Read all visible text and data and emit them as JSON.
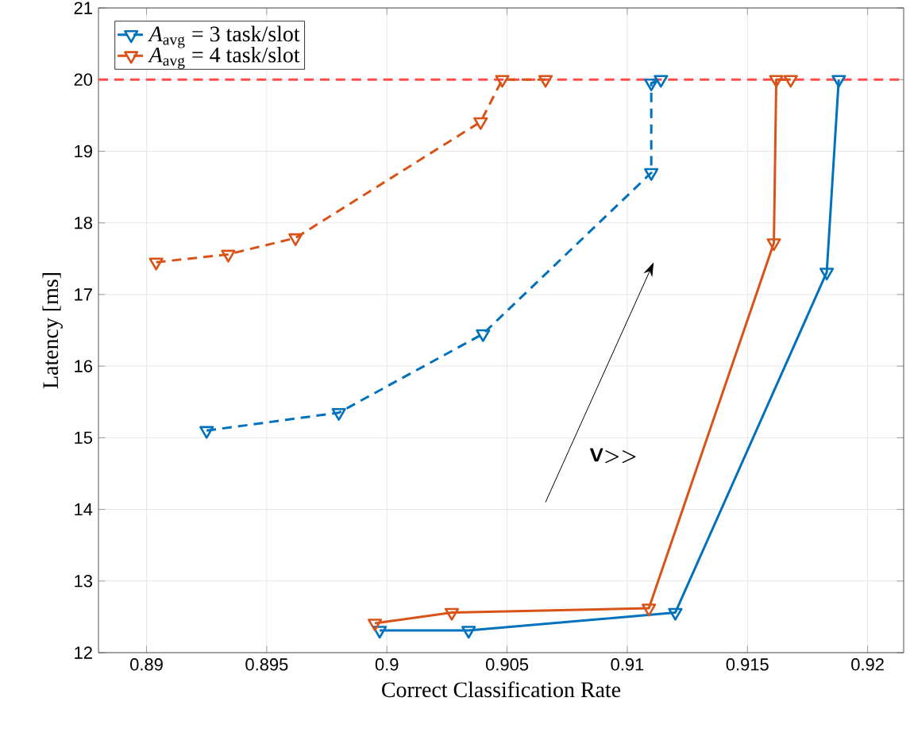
{
  "chart_data": {
    "type": "line",
    "xlabel": "Correct Classification Rate",
    "ylabel": "Latency [ms]",
    "xlim": [
      0.888,
      0.9215
    ],
    "xticks": [
      0.89,
      0.895,
      0.9,
      0.905,
      0.91,
      0.915,
      0.92
    ],
    "ylim": [
      12,
      21
    ],
    "yticks": [
      12,
      13,
      14,
      15,
      16,
      17,
      18,
      19,
      20,
      21
    ],
    "grid": true,
    "legend": "top left",
    "marker": "triangle",
    "annotations": [
      "V>>"
    ],
    "ref_lines": [
      {
        "axis": "y",
        "value": 20,
        "color": "#ff4d4d",
        "line_style": "dashed"
      }
    ],
    "series": [
      {
        "name": "*A*$_{avg}$ = 3 task/slot",
        "color": "#0072bd",
        "line_style": "dashed",
        "x": [
          0.8925,
          0.898,
          0.904,
          0.911,
          0.911,
          0.9114
        ],
        "values": [
          15.1,
          15.35,
          16.45,
          18.7,
          19.95,
          20
        ]
      },
      {
        "name": "*A*$_{avg}$ = 4 task/slot",
        "color": "#d95319",
        "line_style": "dashed",
        "x": [
          0.8904,
          0.8934,
          0.8962,
          0.9039,
          0.9048,
          0.9066
        ],
        "values": [
          17.45,
          17.56,
          17.79,
          19.41,
          20,
          20
        ]
      },
      {
        "color": "#0072bd",
        "line_style": "solid",
        "x": [
          0.8997,
          0.9034,
          0.912,
          0.9183,
          0.9188
        ],
        "values": [
          12.31,
          12.31,
          12.56,
          17.31,
          20
        ]
      },
      {
        "color": "#d95319",
        "line_style": "solid",
        "x": [
          0.8995,
          0.9027,
          0.9109,
          0.9161,
          0.9162,
          0.9168
        ],
        "values": [
          12.41,
          12.56,
          12.62,
          17.72,
          20,
          20
        ]
      }
    ]
  }
}
